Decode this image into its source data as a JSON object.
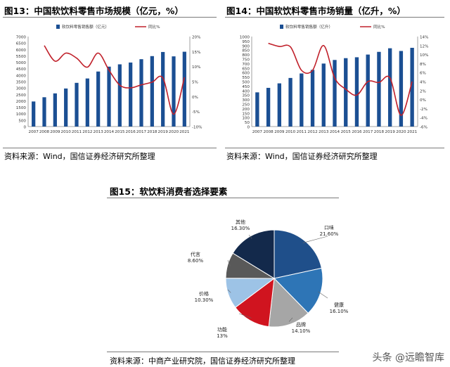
{
  "left": {
    "title": "图13：中国软饮料零售市场规模（亿元，%）",
    "source": "资料来源：Wind，国信证券经济研究所整理",
    "chart_data": {
      "type": "bar",
      "categories": [
        "2007",
        "2008",
        "2009",
        "2010",
        "2011",
        "2012",
        "2013",
        "2014",
        "2015",
        "2016",
        "2017",
        "2018",
        "2019",
        "2020",
        "2021"
      ],
      "series": [
        {
          "name": "软饮料零售销售额（亿元）",
          "type": "bar",
          "axis": "left",
          "values": [
            1950,
            2280,
            2580,
            2960,
            3400,
            3740,
            4280,
            4660,
            4840,
            4980,
            5240,
            5480,
            5800,
            5460,
            5820
          ]
        },
        {
          "name": "同比%",
          "type": "line",
          "axis": "right",
          "values": [
            null,
            17.0,
            11.8,
            14.5,
            12.8,
            9.8,
            14.5,
            8.8,
            3.8,
            2.9,
            3.9,
            4.8,
            6.2,
            -5.9,
            6.4
          ]
        }
      ],
      "yleft": {
        "min": 0,
        "max": 7000,
        "step": 500
      },
      "yright": {
        "min": -10,
        "max": 20,
        "step": 5,
        "suffix": "%"
      },
      "colors": {
        "bar": "#1b4f93",
        "line": "#c0202a"
      }
    }
  },
  "right": {
    "title": "图14：中国软饮料零售市场销量（亿升，%）",
    "source": "资料来源：Wind，国信证券经济研究所整理",
    "chart_data": {
      "type": "bar",
      "categories": [
        "2007",
        "2008",
        "2009",
        "2010",
        "2011",
        "2012",
        "2013",
        "2014",
        "2015",
        "2016",
        "2017",
        "2018",
        "2019",
        "2020",
        "2021"
      ],
      "series": [
        {
          "name": "软饮料零售销售额（亿升）",
          "type": "bar",
          "axis": "left",
          "values": [
            380,
            430,
            480,
            540,
            590,
            630,
            700,
            740,
            760,
            770,
            800,
            830,
            870,
            840,
            875
          ]
        },
        {
          "name": "同比%",
          "type": "line",
          "axis": "right",
          "values": [
            null,
            12.5,
            11.8,
            11.7,
            6.5,
            6.5,
            12.0,
            4.8,
            2.3,
            1.0,
            4.0,
            3.8,
            4.8,
            -3.5,
            4.0
          ]
        }
      ],
      "yleft": {
        "min": 0,
        "max": 1000,
        "step": 50
      },
      "yright": {
        "min": -6,
        "max": 14,
        "step": 2,
        "suffix": "%"
      },
      "colors": {
        "bar": "#1b4f93",
        "line": "#c0202a"
      }
    }
  },
  "pie": {
    "title": "图15：软饮料消费者选择要素",
    "source": "资料来源：中商产业研究院，国信证券经济研究所整理",
    "chart_data": {
      "type": "pie",
      "slices": [
        {
          "label": "口味",
          "value_label": "21.60%",
          "value": 21.6,
          "color": "#1f4f8a"
        },
        {
          "label": "健康",
          "value_label": "16.10%",
          "value": 16.1,
          "color": "#2e75b6"
        },
        {
          "label": "品牌",
          "value_label": "14.10%",
          "value": 14.1,
          "color": "#a6a6a6"
        },
        {
          "label": "功能",
          "value_label": "13%",
          "value": 13.0,
          "color": "#d0141f"
        },
        {
          "label": "价格",
          "value_label": "10.30%",
          "value": 10.3,
          "color": "#9dc3e6"
        },
        {
          "label": "代言",
          "value_label": "8.60%",
          "value": 8.6,
          "color": "#595959"
        },
        {
          "label": "其他",
          "value_label": "16.30%",
          "value": 16.3,
          "color": "#13294b"
        }
      ]
    }
  },
  "watermark": "头条 @远瞻智库"
}
